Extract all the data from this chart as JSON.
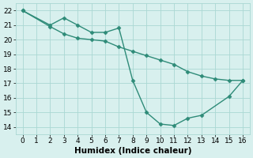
{
  "line1_x": [
    0,
    2,
    3,
    4,
    5,
    6,
    7,
    8,
    9,
    10,
    11,
    12,
    13,
    15,
    16
  ],
  "line1_y": [
    22,
    21,
    21.5,
    21,
    20.5,
    20.5,
    20.8,
    17.2,
    15,
    14.2,
    14.1,
    14.6,
    14.8,
    16.1,
    17.2
  ],
  "line2_x": [
    0,
    2,
    3,
    4,
    5,
    6,
    7,
    8,
    9,
    10,
    11,
    12,
    13,
    14,
    15,
    16
  ],
  "line2_y": [
    22,
    20.9,
    20.4,
    20.1,
    20.0,
    19.9,
    19.5,
    19.2,
    18.9,
    18.6,
    18.3,
    17.8,
    17.5,
    17.3,
    17.2,
    17.2
  ],
  "line_color": "#2e8b78",
  "bg_color": "#d8f0ee",
  "grid_color": "#aad8d3",
  "xlabel": "Humidex (Indice chaleur)",
  "ylim": [
    13.5,
    22.5
  ],
  "xlim": [
    -0.5,
    16.5
  ],
  "xticks": [
    0,
    1,
    2,
    3,
    4,
    5,
    6,
    7,
    8,
    9,
    10,
    11,
    12,
    13,
    14,
    15,
    16
  ],
  "yticks": [
    14,
    15,
    16,
    17,
    18,
    19,
    20,
    21,
    22
  ],
  "marker": "D",
  "marker_size": 2.5,
  "linewidth": 1.0,
  "xlabel_fontsize": 7.5,
  "tick_fontsize": 6.5,
  "xlabel_fontweight": "bold"
}
